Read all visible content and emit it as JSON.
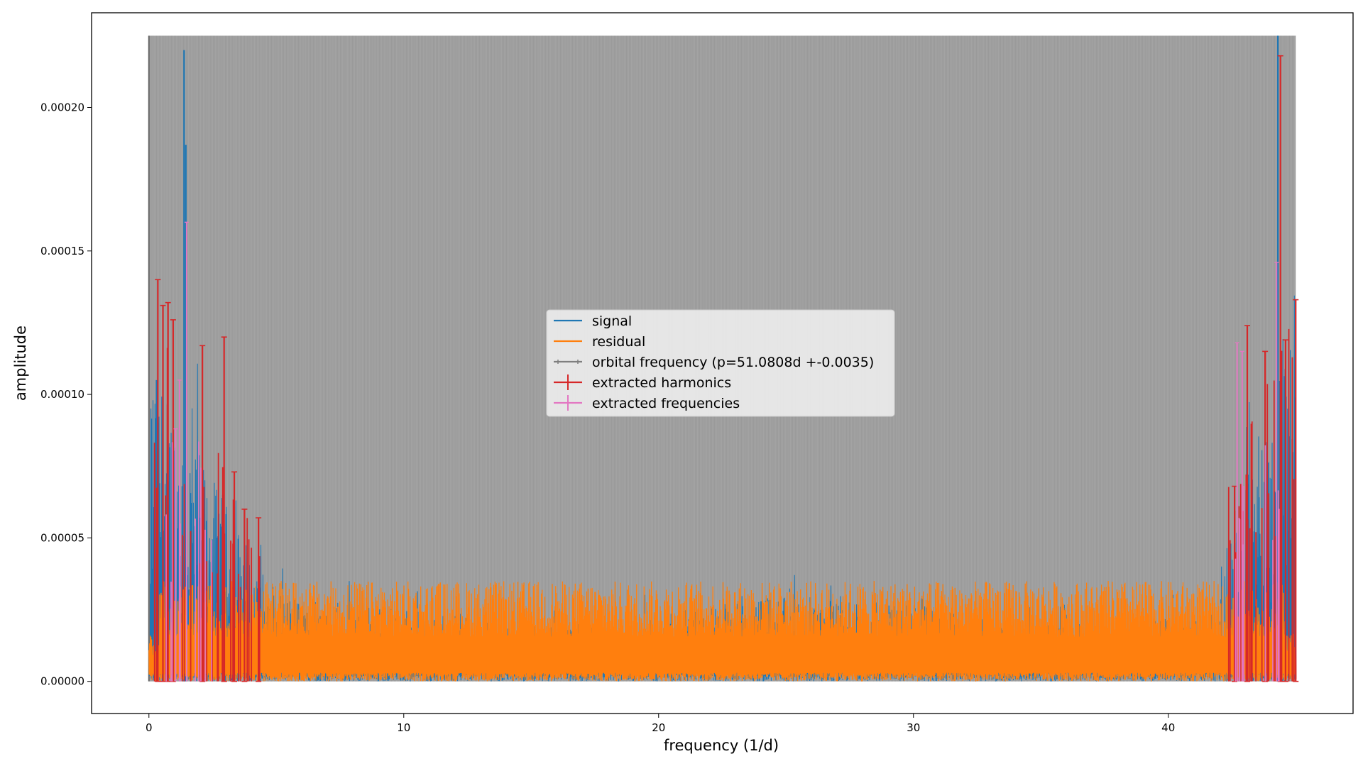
{
  "chart_data": {
    "type": "line",
    "title": "",
    "xlabel": "frequency (1/d)",
    "ylabel": "amplitude",
    "xlim": [
      -2.25,
      47.25
    ],
    "ylim": [
      -1.12e-05,
      0.000233
    ],
    "x_ticks": [
      0,
      10,
      20,
      30,
      40
    ],
    "x_tick_labels": [
      "0",
      "10",
      "20",
      "30",
      "40"
    ],
    "y_ticks": [
      0,
      5e-05,
      0.0001,
      0.00015,
      0.0002
    ],
    "y_tick_labels": [
      "0.00000",
      "0.00005",
      "0.00010",
      "0.00015",
      "0.00020"
    ],
    "grid": false,
    "legend_position": "center",
    "colors": {
      "signal": "#1f77b4",
      "residual": "#ff7f0e",
      "orbital": "#7f7f7f",
      "harmonics": "#d62728",
      "frequencies": "#e377c2"
    },
    "frequency_range": [
      0,
      45
    ],
    "orbital_band_top": 0.000225,
    "series": [
      {
        "name": "signal",
        "description_points": [
          [
            1.38,
            0.00022
          ],
          [
            1.45,
            0.000187
          ],
          [
            44.3,
            0.000225
          ],
          [
            0.3,
            0.000105
          ],
          [
            2.9,
            6.5e-05
          ]
        ]
      },
      {
        "name": "residual",
        "level_range": [
          5e-06,
          3.5e-05
        ]
      },
      {
        "name": "orbital frequency (p=51.0808d +-0.0035)",
        "period": 51.0808,
        "period_error": 0.0035
      },
      {
        "name": "extracted harmonics",
        "points": [
          [
            0.35,
            0.00014
          ],
          [
            0.55,
            0.000131
          ],
          [
            0.75,
            0.000132
          ],
          [
            0.95,
            0.000126
          ],
          [
            2.1,
            0.000117
          ],
          [
            2.95,
            0.00012
          ],
          [
            3.35,
            7.3e-05
          ],
          [
            3.75,
            6e-05
          ],
          [
            4.3,
            5.7e-05
          ],
          [
            42.6,
            6.8e-05
          ],
          [
            43.1,
            0.000124
          ],
          [
            43.8,
            0.000115
          ],
          [
            44.4,
            0.000218
          ],
          [
            44.6,
            0.000119
          ],
          [
            45.0,
            0.000133
          ]
        ]
      },
      {
        "name": "extracted frequencies",
        "points": [
          [
            1.48,
            0.00016
          ],
          [
            1.2,
            0.000105
          ],
          [
            1.05,
            8.8e-05
          ],
          [
            42.7,
            0.000118
          ],
          [
            42.9,
            0.000115
          ],
          [
            44.25,
            0.000146
          ]
        ]
      }
    ]
  }
}
